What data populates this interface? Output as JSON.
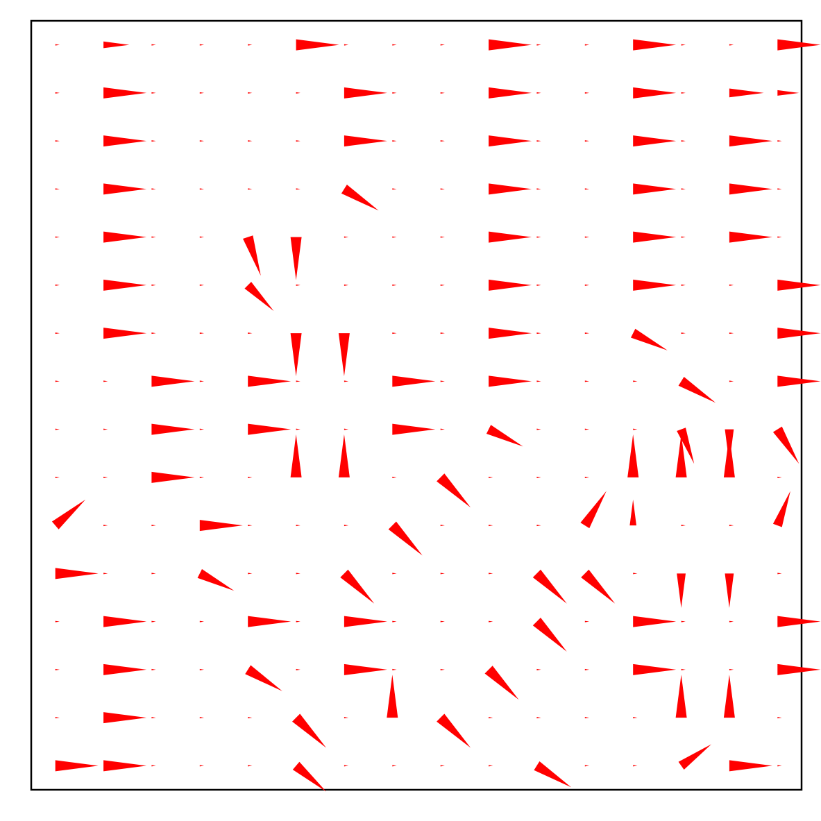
{
  "chart_data": {
    "type": "quiver",
    "color": "#ff0000",
    "x": [
      0,
      1,
      2,
      3,
      4,
      5,
      6,
      7,
      8,
      9,
      10,
      11,
      12,
      13,
      14,
      15
    ],
    "y": [
      15,
      14,
      13,
      12,
      11,
      10,
      9,
      8,
      7,
      6,
      5,
      4,
      3,
      2,
      1,
      0
    ],
    "xlim": [
      -0.5,
      15.5
    ],
    "ylim": [
      -0.5,
      15.5
    ],
    "u": [
      [
        0.1,
        0.6,
        0.1,
        0.1,
        0.1,
        1,
        0.1,
        0.1,
        0.1,
        1,
        0.1,
        0.1,
        1,
        0.1,
        0.1,
        1
      ],
      [
        0.1,
        1,
        0.1,
        0.1,
        0.1,
        0.1,
        1,
        0.1,
        0.1,
        1,
        0.1,
        0.1,
        1,
        0.1,
        0.8,
        0.5
      ],
      [
        0.1,
        1,
        0.1,
        0.1,
        0.1,
        0.1,
        1,
        0.1,
        0.1,
        1,
        0.1,
        0.1,
        1,
        0.1,
        1,
        0.1
      ],
      [
        0.1,
        1,
        0.1,
        0.1,
        0.1,
        0.1,
        0.8,
        0.1,
        0.1,
        1,
        0.1,
        0.1,
        1,
        0.1,
        1,
        0.1
      ],
      [
        0.1,
        1,
        0.1,
        0.1,
        0.3,
        0,
        0.1,
        0.1,
        0.1,
        1,
        0.1,
        0.1,
        1,
        0.1,
        1,
        0.1
      ],
      [
        0.1,
        1,
        0.1,
        0.1,
        0.6,
        0.1,
        0.1,
        0.1,
        0.1,
        1,
        0.1,
        0.1,
        1,
        0.1,
        0.1,
        1
      ],
      [
        0.1,
        1,
        0.1,
        0.1,
        0.1,
        0,
        0,
        0.1,
        0.1,
        1,
        0.1,
        0.1,
        0.8,
        0.1,
        0.1,
        1
      ],
      [
        0.1,
        0.1,
        1,
        0.1,
        1,
        0.1,
        0.1,
        1,
        0.1,
        1,
        0.1,
        0.1,
        0.1,
        0.8,
        0.1,
        1
      ],
      [
        0.1,
        0.1,
        1,
        0.1,
        1,
        0.1,
        0.1,
        1,
        0.1,
        0.8,
        0.1,
        0.1,
        0.1,
        0.3,
        0,
        0.5
      ],
      [
        0.1,
        0.1,
        1,
        0.1,
        0.1,
        0,
        0,
        0.1,
        0.7,
        0.1,
        0.1,
        0.1,
        0,
        0,
        0,
        0.1
      ],
      [
        0.7,
        0.1,
        0.1,
        1,
        0.1,
        0.1,
        0.1,
        0.7,
        0.1,
        0.1,
        0.1,
        0.5,
        0,
        0.1,
        0.1,
        0.3
      ],
      [
        1,
        0.1,
        0.1,
        0.8,
        0.1,
        0.1,
        0.7,
        0.1,
        0.1,
        0.1,
        0.7,
        0.7,
        0.1,
        0,
        0,
        0.1
      ],
      [
        0.1,
        1,
        0.1,
        0.1,
        1,
        0.1,
        1,
        0.1,
        0.1,
        0.1,
        0.7,
        0.1,
        1,
        0.1,
        0.1,
        1
      ],
      [
        0.1,
        1,
        0.1,
        0.1,
        0.8,
        0.1,
        1,
        0.1,
        0.1,
        0.7,
        0.1,
        0.1,
        1,
        0.1,
        0.1,
        1
      ],
      [
        0.1,
        1,
        0.1,
        0.1,
        0.1,
        0.7,
        0.1,
        0,
        0.7,
        0.1,
        0.1,
        0.1,
        0.1,
        0,
        0,
        0.1
      ],
      [
        1,
        1,
        0.1,
        0.1,
        0.1,
        0.7,
        0.1,
        0.1,
        0.1,
        0.1,
        0.8,
        0.1,
        0.1,
        0.7,
        1,
        0.1
      ]
    ],
    "v": [
      [
        0,
        0,
        0,
        0,
        0,
        0,
        0,
        0,
        0,
        0,
        0,
        0,
        0,
        0,
        0,
        0
      ],
      [
        0,
        0,
        0,
        0,
        0,
        0,
        0,
        0,
        0,
        0,
        0,
        0,
        0,
        0,
        0,
        0
      ],
      [
        0,
        0,
        0,
        0,
        0,
        0,
        0,
        0,
        0,
        0,
        0,
        0,
        0,
        0,
        0,
        0
      ],
      [
        0,
        0,
        0,
        0,
        0,
        0,
        -0.5,
        0,
        0,
        0,
        0,
        0,
        0,
        0,
        0,
        0
      ],
      [
        0,
        0,
        0,
        0,
        -0.9,
        -1,
        0,
        0,
        0,
        0,
        0,
        0,
        0,
        0,
        0,
        0
      ],
      [
        0,
        0,
        0,
        0,
        -0.6,
        0,
        0,
        0,
        0,
        0,
        0,
        0,
        0,
        0,
        0,
        0
      ],
      [
        0,
        0,
        0,
        0,
        0,
        -1,
        -1,
        0,
        0,
        0,
        0,
        0,
        -0.4,
        0,
        0,
        0
      ],
      [
        0,
        0,
        0,
        0,
        0,
        0,
        0,
        0,
        0,
        0,
        0,
        0,
        0,
        -0.5,
        0,
        0
      ],
      [
        0,
        0,
        0,
        0,
        0,
        0,
        0,
        0,
        0,
        -0.4,
        0,
        0,
        0,
        -0.8,
        -0.8,
        -0.8
      ],
      [
        0,
        0,
        0,
        0,
        0,
        1,
        1,
        0,
        -0.7,
        0,
        0,
        0,
        1,
        1,
        1,
        0
      ],
      [
        0.6,
        0,
        0,
        0,
        0,
        0,
        0,
        -0.7,
        0,
        0,
        0,
        0.8,
        0.6,
        0,
        0,
        0.8
      ],
      [
        0,
        0,
        0,
        -0.4,
        0,
        0,
        -0.7,
        0,
        0,
        0,
        -0.7,
        -0.7,
        0,
        -0.8,
        -0.8,
        0
      ],
      [
        0,
        0,
        0,
        0,
        0,
        0,
        0,
        0,
        0,
        0,
        -0.7,
        0,
        0,
        0,
        0,
        0
      ],
      [
        0,
        0,
        0,
        0,
        -0.5,
        0,
        0,
        0,
        0,
        -0.7,
        0,
        0,
        0,
        0,
        0,
        0
      ],
      [
        0,
        0,
        0,
        0,
        0,
        -0.7,
        0,
        1,
        -0.7,
        0,
        0,
        0,
        0,
        1,
        1,
        0
      ],
      [
        0,
        0,
        0,
        0,
        0,
        -0.6,
        0,
        0,
        0,
        0,
        -0.5,
        0,
        0,
        0.5,
        0,
        0
      ]
    ]
  }
}
